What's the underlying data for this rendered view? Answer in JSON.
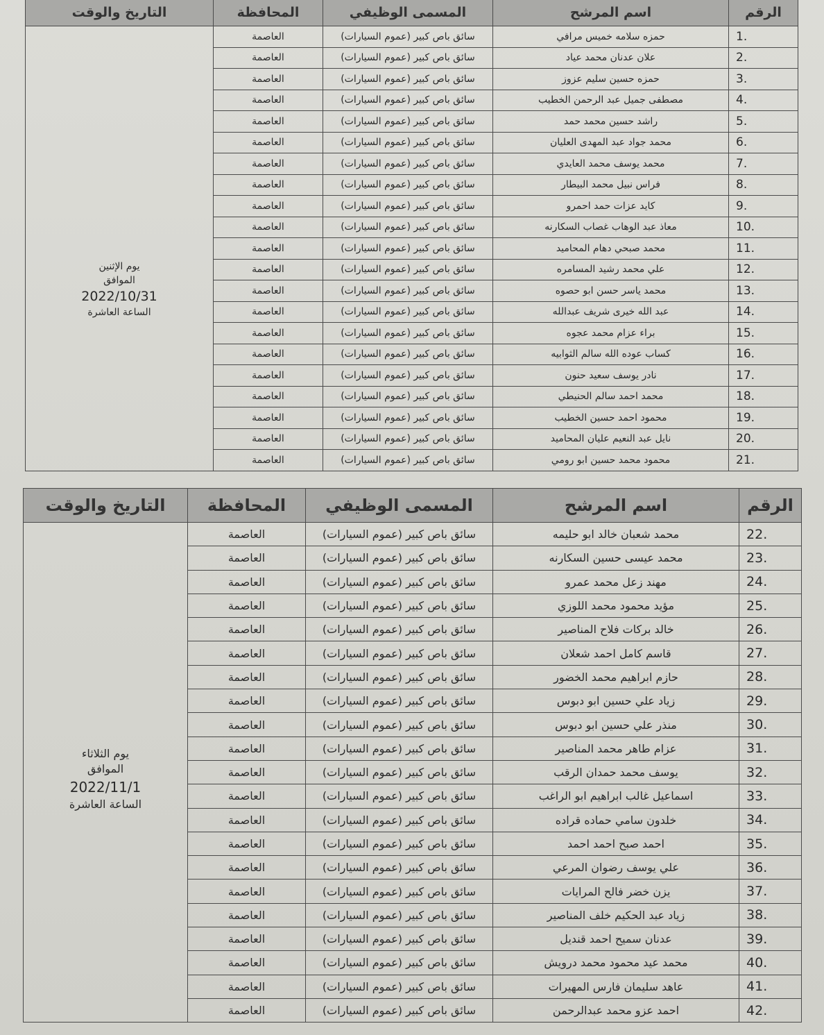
{
  "headers": {
    "number": "الرقم",
    "name": "اسم المرشح",
    "job": "المسمى الوظيفي",
    "governorate": "المحافظة",
    "datetime": "التاريخ والوقت"
  },
  "table1": {
    "schedule": {
      "day": "يوم الإثنين",
      "agreed": "الموافق",
      "date": "2022/10/31",
      "time": "الساعة العاشرة"
    },
    "rows": [
      {
        "num": ".1",
        "name": "حمزه سلامه خميس مرافي",
        "job": "سائق باص كبير (عموم السيارات)",
        "gov": "العاصمة"
      },
      {
        "num": ".2",
        "name": "علان عدنان محمد عياد",
        "job": "سائق باص كبير (عموم السيارات)",
        "gov": "العاصمة"
      },
      {
        "num": ".3",
        "name": "حمزه حسين سليم عزوز",
        "job": "سائق باص كبير (عموم السيارات)",
        "gov": "العاصمة"
      },
      {
        "num": ".4",
        "name": "مصطفى جميل عبد الرحمن الخطيب",
        "job": "سائق باص كبير (عموم السيارات)",
        "gov": "العاصمة"
      },
      {
        "num": ".5",
        "name": "راشد حسين محمد حمد",
        "job": "سائق باص كبير (عموم السيارات)",
        "gov": "العاصمة"
      },
      {
        "num": ".6",
        "name": "محمد جواد عبد المهدى العليان",
        "job": "سائق باص كبير (عموم السيارات)",
        "gov": "العاصمة"
      },
      {
        "num": ".7",
        "name": "محمد يوسف محمد العايدي",
        "job": "سائق باص كبير (عموم السيارات)",
        "gov": "العاصمة"
      },
      {
        "num": ".8",
        "name": "فراس نبيل محمد البيطار",
        "job": "سائق باص كبير (عموم السيارات)",
        "gov": "العاصمة"
      },
      {
        "num": ".9",
        "name": "كايد عزات حمد احمرو",
        "job": "سائق باص كبير (عموم السيارات)",
        "gov": "العاصمة"
      },
      {
        "num": ".10",
        "name": "معاذ عبد الوهاب غصاب السكارنه",
        "job": "سائق باص كبير (عموم السيارات)",
        "gov": "العاصمة"
      },
      {
        "num": ".11",
        "name": "محمد صبحي دهام المحاميد",
        "job": "سائق باص كبير (عموم السيارات)",
        "gov": "العاصمة"
      },
      {
        "num": ".12",
        "name": "علي محمد رشيد المسامره",
        "job": "سائق باص كبير (عموم السيارات)",
        "gov": "العاصمة"
      },
      {
        "num": ".13",
        "name": "محمد ياسر حسن ابو حصوه",
        "job": "سائق باص كبير (عموم السيارات)",
        "gov": "العاصمة"
      },
      {
        "num": ".14",
        "name": "عبد الله خيرى شريف عبدالله",
        "job": "سائق باص كبير (عموم السيارات)",
        "gov": "العاصمة"
      },
      {
        "num": ".15",
        "name": "براء عزام محمد عجوه",
        "job": "سائق باص كبير (عموم السيارات)",
        "gov": "العاصمة"
      },
      {
        "num": ".16",
        "name": "كساب عوده الله سالم الثوابيه",
        "job": "سائق باص كبير (عموم السيارات)",
        "gov": "العاصمة"
      },
      {
        "num": ".17",
        "name": "نادر يوسف سعيد حنون",
        "job": "سائق باص كبير (عموم السيارات)",
        "gov": "العاصمة"
      },
      {
        "num": ".18",
        "name": "محمد احمد سالم الحنيطي",
        "job": "سائق باص كبير (عموم السيارات)",
        "gov": "العاصمة"
      },
      {
        "num": ".19",
        "name": "محمود احمد حسين الخطيب",
        "job": "سائق باص كبير (عموم السيارات)",
        "gov": "العاصمة"
      },
      {
        "num": ".20",
        "name": "نايل عبد النعيم عليان المحاميد",
        "job": "سائق باص كبير (عموم السيارات)",
        "gov": "العاصمة"
      },
      {
        "num": ".21",
        "name": "محمود محمد حسين ابو رومي",
        "job": "سائق باص كبير (عموم السيارات)",
        "gov": "العاصمة"
      }
    ]
  },
  "table2": {
    "schedule": {
      "day": "يوم الثلاثاء",
      "agreed": "الموافق",
      "date": "2022/11/1",
      "time": "الساعة العاشرة"
    },
    "rows": [
      {
        "num": ".22",
        "name": "محمد شعبان خالد ابو حليمه",
        "job": "سائق باص كبير (عموم السيارات)",
        "gov": "العاصمة"
      },
      {
        "num": ".23",
        "name": "محمد عيسى حسين السكارنه",
        "job": "سائق باص كبير (عموم السيارات)",
        "gov": "العاصمة"
      },
      {
        "num": ".24",
        "name": "مهند زعل محمد عمرو",
        "job": "سائق باص كبير (عموم السيارات)",
        "gov": "العاصمة"
      },
      {
        "num": ".25",
        "name": "مؤيد محمود محمد اللوزي",
        "job": "سائق باص كبير (عموم السيارات)",
        "gov": "العاصمة"
      },
      {
        "num": ".26",
        "name": "خالد بركات فلاح المناصير",
        "job": "سائق باص كبير (عموم السيارات)",
        "gov": "العاصمة"
      },
      {
        "num": ".27",
        "name": "قاسم كامل احمد شعلان",
        "job": "سائق باص كبير (عموم السيارات)",
        "gov": "العاصمة"
      },
      {
        "num": ".28",
        "name": "حازم ابراهيم محمد الخضور",
        "job": "سائق باص كبير (عموم السيارات)",
        "gov": "العاصمة"
      },
      {
        "num": ".29",
        "name": "زياد علي حسين ابو دبوس",
        "job": "سائق باص كبير (عموم السيارات)",
        "gov": "العاصمة"
      },
      {
        "num": ".30",
        "name": "منذر علي حسين ابو دبوس",
        "job": "سائق باص كبير (عموم السيارات)",
        "gov": "العاصمة"
      },
      {
        "num": ".31",
        "name": "عزام طاهر محمد المناصير",
        "job": "سائق باص كبير (عموم السيارات)",
        "gov": "العاصمة"
      },
      {
        "num": ".32",
        "name": "يوسف محمد حمدان الرقب",
        "job": "سائق باص كبير (عموم السيارات)",
        "gov": "العاصمة"
      },
      {
        "num": ".33",
        "name": "اسماعيل غالب ابراهيم ابو الراغب",
        "job": "سائق باص كبير (عموم السيارات)",
        "gov": "العاصمة"
      },
      {
        "num": ".34",
        "name": "خلدون سامي حماده قراده",
        "job": "سائق باص كبير (عموم السيارات)",
        "gov": "العاصمة"
      },
      {
        "num": ".35",
        "name": "احمد صبح احمد احمد",
        "job": "سائق باص كبير (عموم السيارات)",
        "gov": "العاصمة"
      },
      {
        "num": ".36",
        "name": "علي يوسف رضوان المرعي",
        "job": "سائق باص كبير (عموم السيارات)",
        "gov": "العاصمة"
      },
      {
        "num": ".37",
        "name": "يزن خضر فالح المرايات",
        "job": "سائق باص كبير (عموم السيارات)",
        "gov": "العاصمة"
      },
      {
        "num": ".38",
        "name": "زياد عبد الحكيم خلف المناصير",
        "job": "سائق باص كبير (عموم السيارات)",
        "gov": "العاصمة"
      },
      {
        "num": ".39",
        "name": "عدنان سميح احمد قنديل",
        "job": "سائق باص كبير (عموم السيارات)",
        "gov": "العاصمة"
      },
      {
        "num": ".40",
        "name": "محمد عيد محمود محمد درويش",
        "job": "سائق باص كبير (عموم السيارات)",
        "gov": "العاصمة"
      },
      {
        "num": ".41",
        "name": "عاهد سليمان فارس المهيرات",
        "job": "سائق باص كبير (عموم السيارات)",
        "gov": "العاصمة"
      },
      {
        "num": ".42",
        "name": "احمد عزو محمد عبدالرحمن",
        "job": "سائق باص كبير (عموم السيارات)",
        "gov": "العاصمة"
      }
    ]
  }
}
